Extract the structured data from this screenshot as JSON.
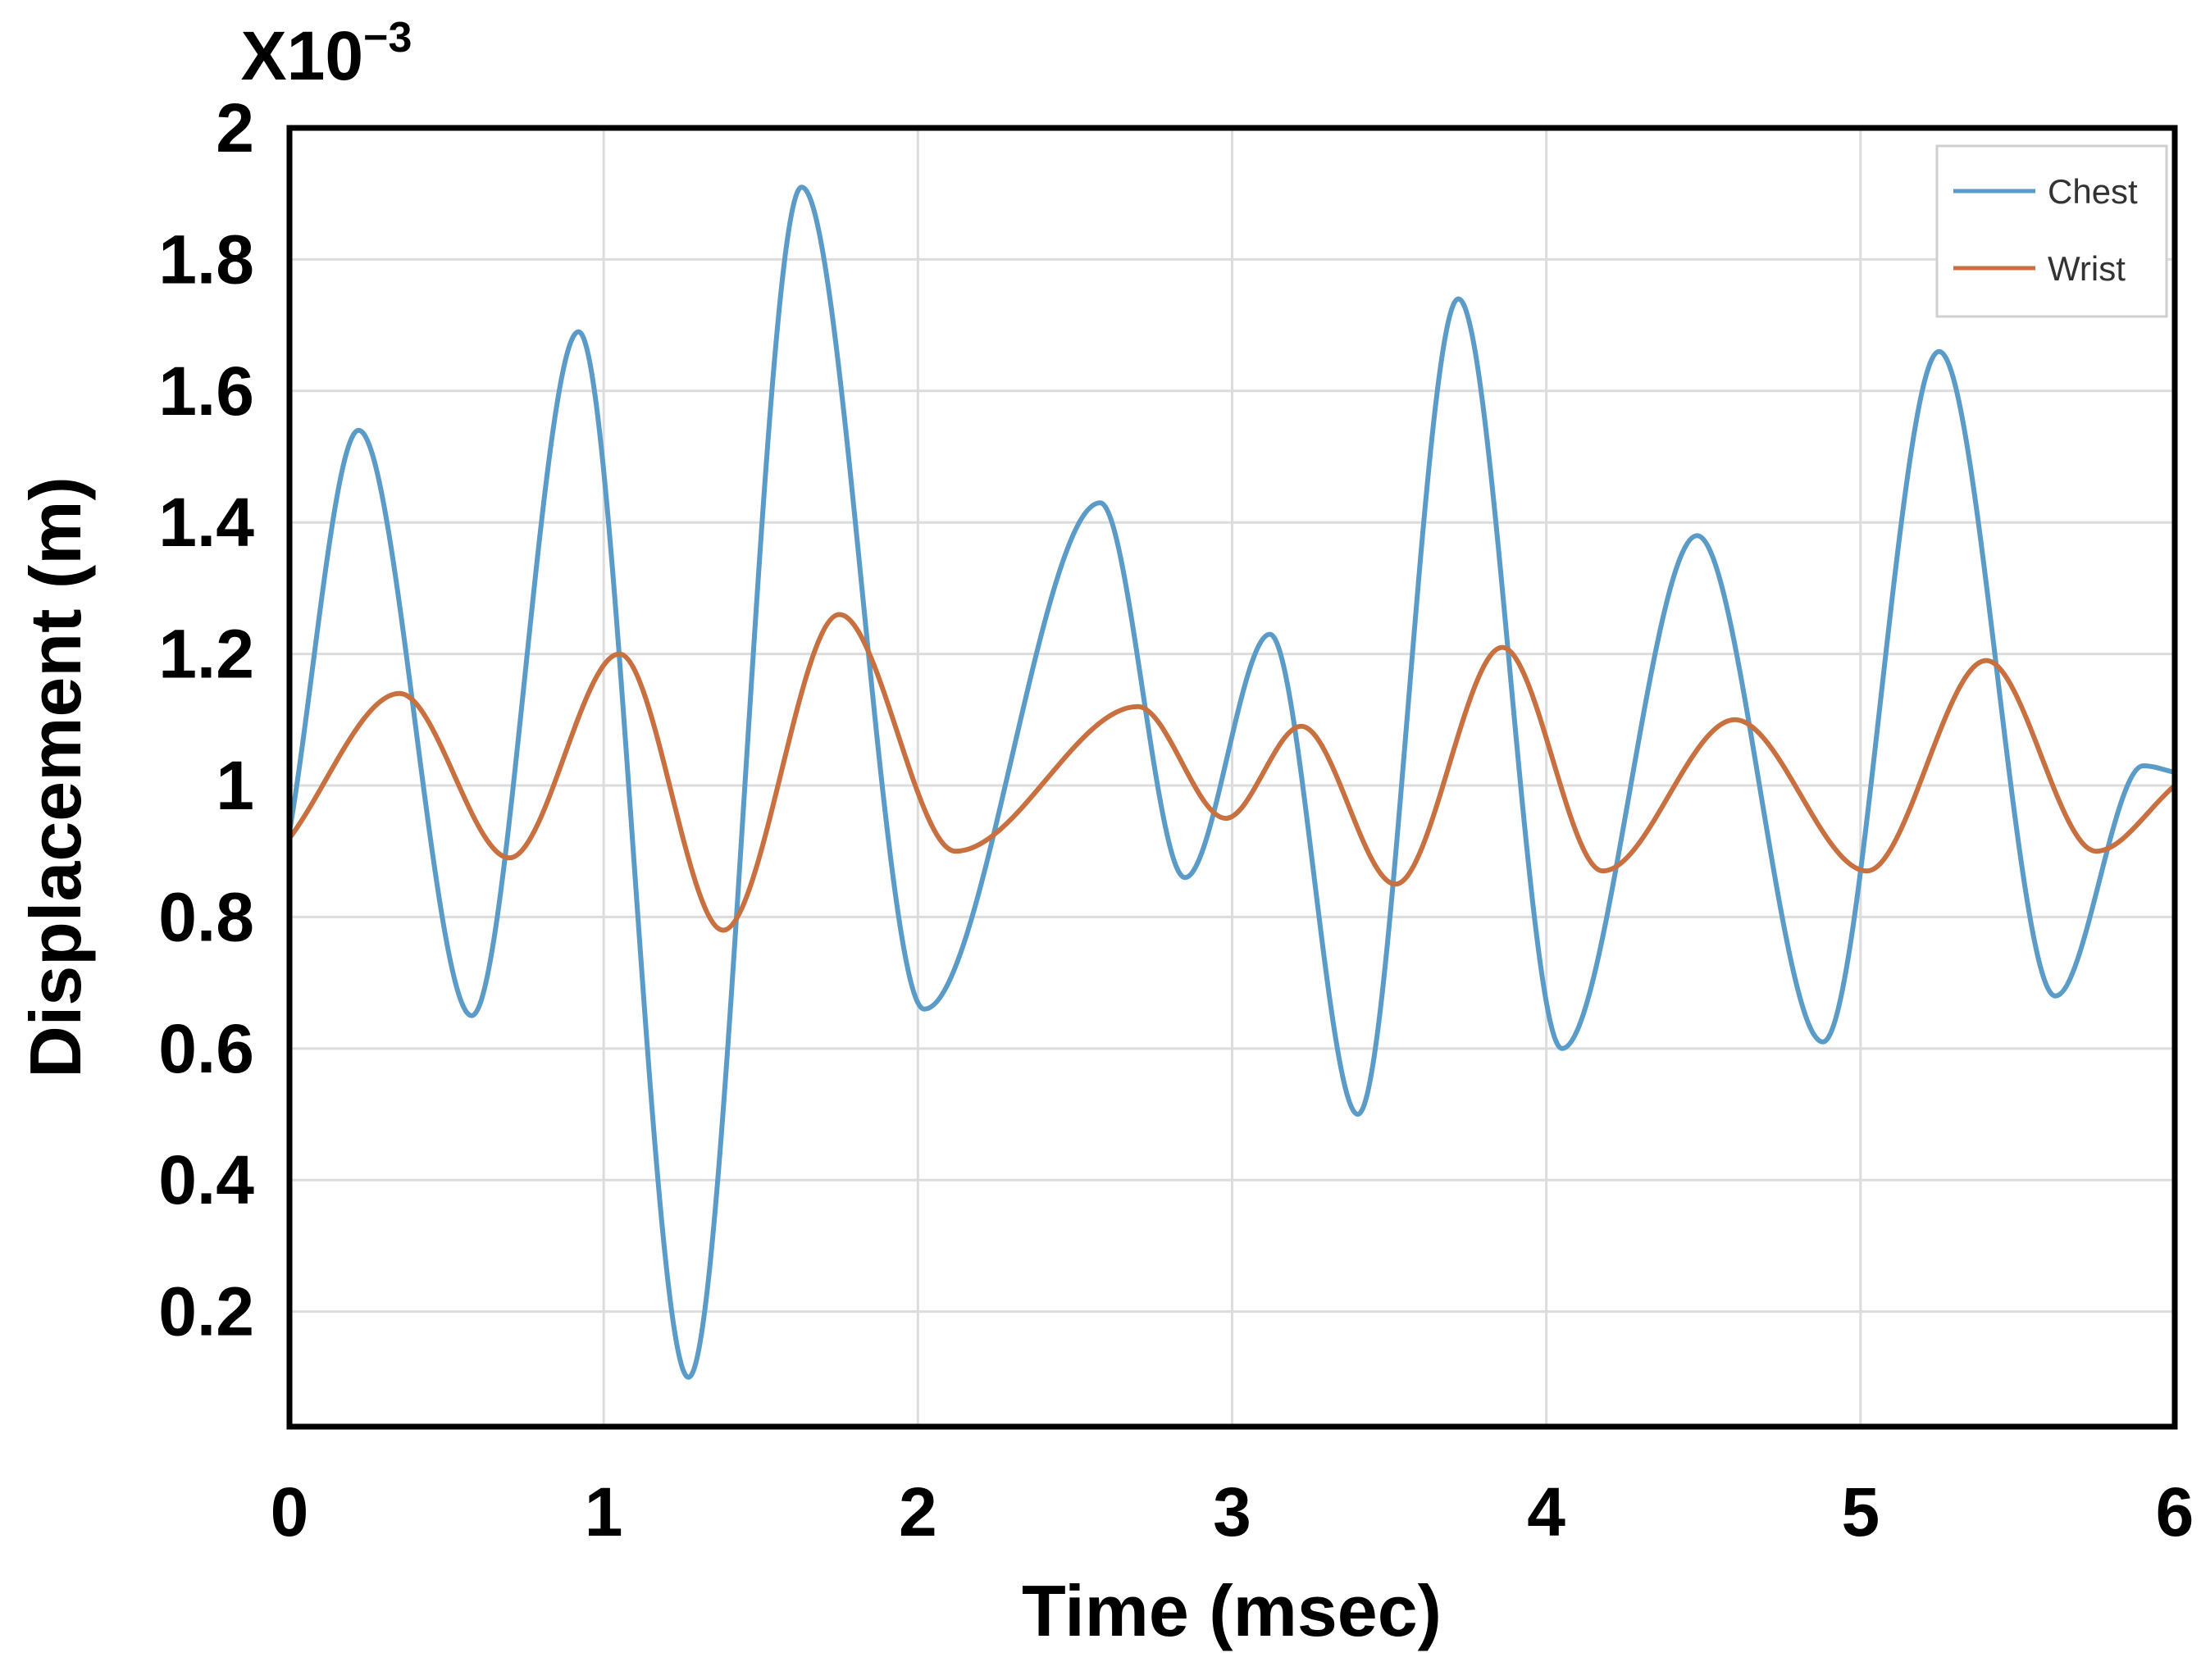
{
  "chart_data": {
    "type": "line",
    "title": "",
    "xlabel": "Time (msec)",
    "ylabel": "Displacement (m)",
    "y_multiplier": "X10",
    "y_multiplier_exponent": "−3",
    "xlim": [
      0,
      6
    ],
    "ylim": [
      0.025,
      2.0
    ],
    "x_ticks": [
      0,
      1,
      2,
      3,
      4,
      5,
      6
    ],
    "x_tick_labels": [
      "0",
      "1",
      "2",
      "3",
      "4",
      "5",
      "6"
    ],
    "y_ticks": [
      2.0,
      1.8,
      1.6,
      1.4,
      1.2,
      1.0,
      0.8,
      0.6,
      0.4,
      0.2
    ],
    "y_tick_labels": [
      "2",
      "1.8",
      "1.6",
      "1.4",
      "1.2",
      "1",
      "0.8",
      "0.6",
      "0.4",
      "0.2"
    ],
    "grid": true,
    "legend_position": "top-right",
    "series": [
      {
        "name": "Chest",
        "color": "#5b9bc8",
        "x": [
          0,
          0.22,
          0.58,
          0.92,
          1.27,
          1.63,
          2.02,
          2.58,
          2.85,
          3.12,
          3.4,
          3.72,
          4.05,
          4.48,
          4.88,
          5.25,
          5.62,
          5.9,
          6.0
        ],
        "y": [
          0.93,
          1.54,
          0.65,
          1.69,
          0.1,
          1.91,
          0.66,
          1.43,
          0.86,
          1.23,
          0.5,
          1.74,
          0.6,
          1.38,
          0.61,
          1.66,
          0.68,
          1.03,
          1.02
        ]
      },
      {
        "name": "Wrist",
        "color": "#c87040",
        "x": [
          0,
          0.35,
          0.7,
          1.05,
          1.38,
          1.75,
          2.12,
          2.7,
          2.98,
          3.22,
          3.52,
          3.86,
          4.18,
          4.6,
          5.02,
          5.4,
          5.75,
          6.0
        ],
        "y": [
          0.92,
          1.14,
          0.89,
          1.2,
          0.78,
          1.26,
          0.9,
          1.12,
          0.95,
          1.09,
          0.85,
          1.21,
          0.87,
          1.1,
          0.87,
          1.19,
          0.9,
          1.0
        ]
      }
    ]
  }
}
